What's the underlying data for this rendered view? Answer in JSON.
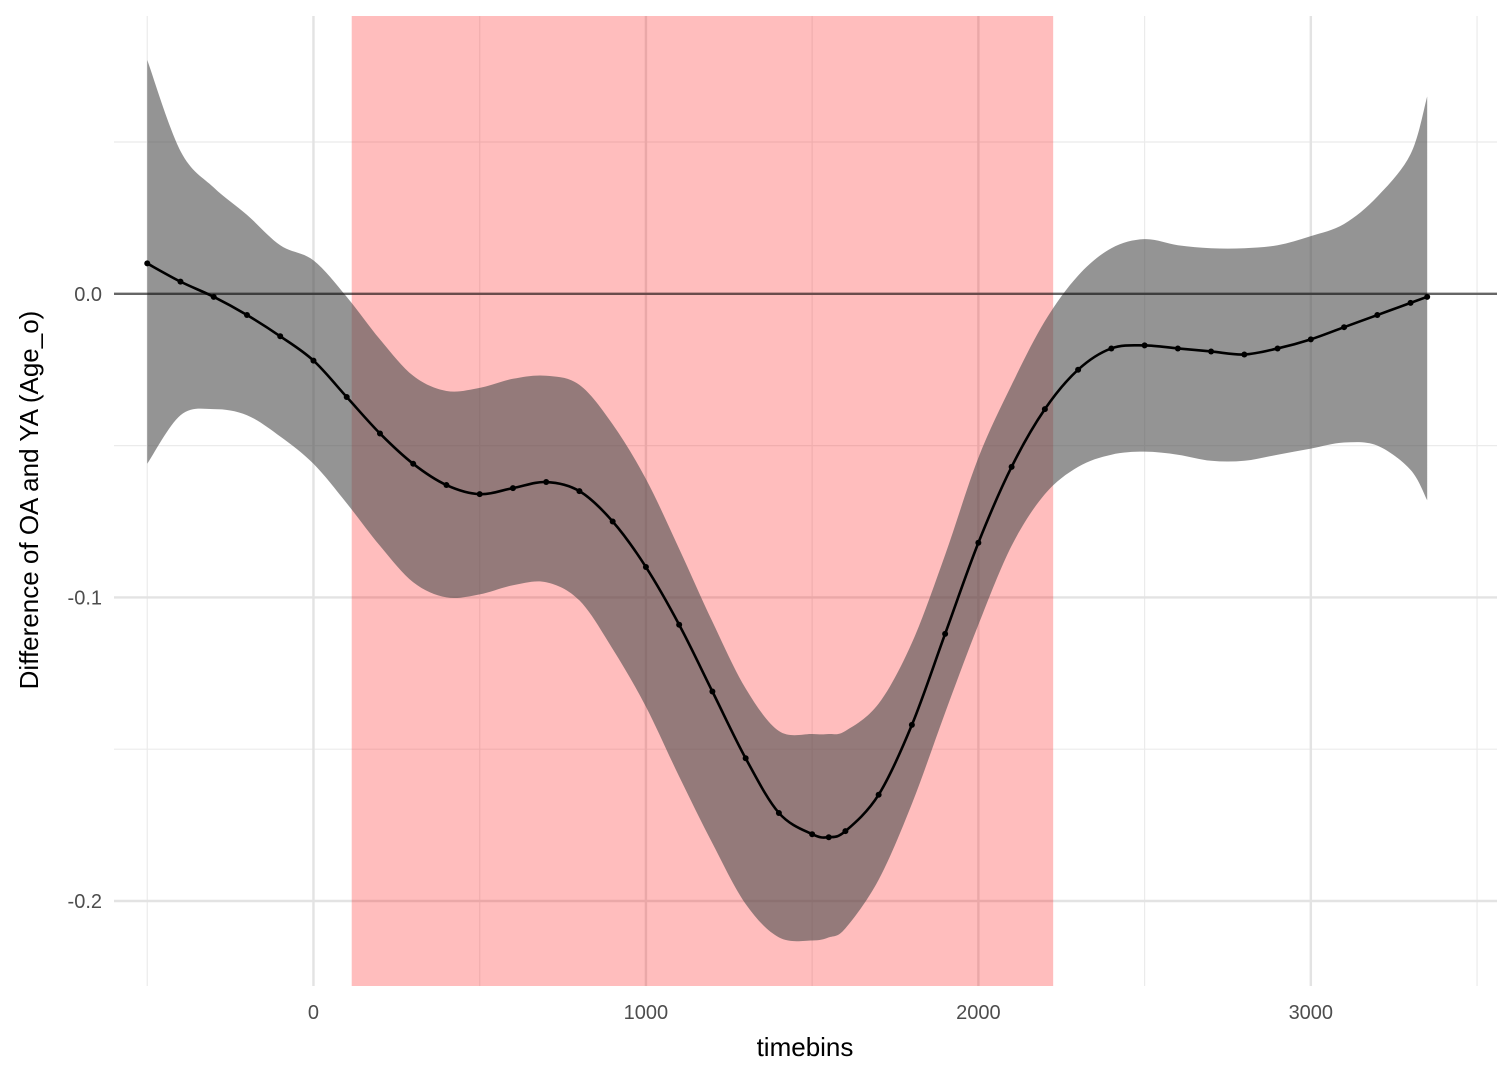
{
  "chart_data": {
    "type": "line",
    "xlabel": "timebins",
    "ylabel": "Difference of OA and YA (Age_o)",
    "xlim": [
      -600,
      3560
    ],
    "ylim": [
      -0.228,
      0.0915
    ],
    "x_ticks": [
      0,
      1000,
      2000,
      3000
    ],
    "x_tick_labels": [
      "0",
      "1000",
      "2000",
      "3000"
    ],
    "y_ticks": [
      0.0,
      -0.1,
      -0.2
    ],
    "y_tick_labels": [
      "0.0",
      "-0.1",
      "-0.2"
    ],
    "x_minor_ticks": [
      -500,
      500,
      1500,
      2500,
      3500
    ],
    "y_minor_ticks": [
      0.05,
      -0.05,
      -0.15
    ],
    "grid": true,
    "reference_line_y": 0.0,
    "highlight_region": {
      "x_start": 115,
      "x_end": 2225,
      "color": "#ff0000",
      "opacity": 0.26
    },
    "ribbon_color": "#4d4d4d",
    "ribbon_opacity": 0.6,
    "line_color": "#000000",
    "series": [
      {
        "x": [
          -500,
          -400,
          -300,
          -200,
          -100,
          0,
          100,
          200,
          300,
          400,
          500,
          600,
          700,
          800,
          900,
          1000,
          1100,
          1200,
          1300,
          1400,
          1500,
          1550,
          1600,
          1700,
          1800,
          1900,
          2000,
          2100,
          2200,
          2300,
          2400,
          2500,
          2600,
          2700,
          2800,
          2900,
          3000,
          3100,
          3200,
          3300,
          3350
        ],
        "y": [
          0.01,
          0.004,
          -0.001,
          -0.007,
          -0.014,
          -0.022,
          -0.034,
          -0.046,
          -0.056,
          -0.063,
          -0.066,
          -0.064,
          -0.062,
          -0.065,
          -0.075,
          -0.09,
          -0.109,
          -0.131,
          -0.153,
          -0.171,
          -0.178,
          -0.179,
          -0.177,
          -0.165,
          -0.142,
          -0.112,
          -0.082,
          -0.057,
          -0.038,
          -0.025,
          -0.018,
          -0.017,
          -0.018,
          -0.019,
          -0.02,
          -0.018,
          -0.015,
          -0.011,
          -0.007,
          -0.003,
          -0.001
        ],
        "lower": [
          -0.056,
          -0.04,
          -0.038,
          -0.04,
          -0.047,
          -0.056,
          -0.069,
          -0.083,
          -0.095,
          -0.1,
          -0.099,
          -0.096,
          -0.095,
          -0.101,
          -0.117,
          -0.136,
          -0.159,
          -0.181,
          -0.201,
          -0.212,
          -0.213,
          -0.212,
          -0.209,
          -0.193,
          -0.168,
          -0.138,
          -0.109,
          -0.083,
          -0.066,
          -0.057,
          -0.053,
          -0.052,
          -0.053,
          -0.055,
          -0.055,
          -0.053,
          -0.051,
          -0.049,
          -0.05,
          -0.058,
          -0.068
        ],
        "upper": [
          0.077,
          0.047,
          0.035,
          0.026,
          0.016,
          0.011,
          -0.001,
          -0.015,
          -0.027,
          -0.032,
          -0.031,
          -0.028,
          -0.027,
          -0.03,
          -0.043,
          -0.061,
          -0.084,
          -0.108,
          -0.13,
          -0.144,
          -0.145,
          -0.145,
          -0.144,
          -0.135,
          -0.115,
          -0.086,
          -0.054,
          -0.03,
          -0.009,
          0.006,
          0.015,
          0.018,
          0.016,
          0.015,
          0.015,
          0.016,
          0.019,
          0.023,
          0.032,
          0.046,
          0.065
        ]
      }
    ]
  }
}
